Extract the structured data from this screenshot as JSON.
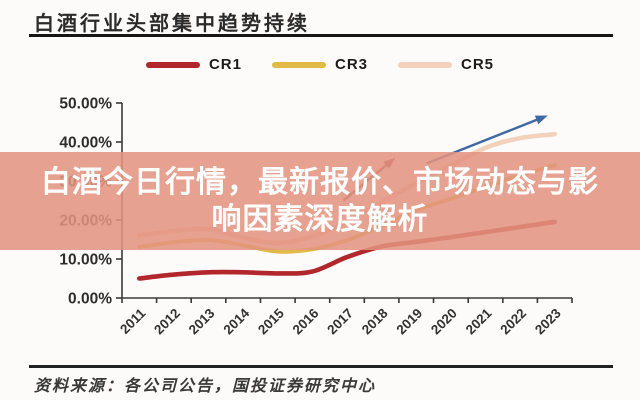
{
  "title": "白酒行业头部集中趋势持续",
  "overlay": {
    "line1": "白酒今日行情，最新报价、市场动态与影",
    "line2": "响因素深度解析",
    "bg_color": "#e29380",
    "text_color": "#ffffff"
  },
  "source": "资料来源：各公司公告，国投证券研究中心",
  "legend": [
    {
      "label": "CR1",
      "color": "#b2272b"
    },
    {
      "label": "CR3",
      "color": "#e2ba47"
    },
    {
      "label": "CR5",
      "color": "#f3d1bd"
    }
  ],
  "chart_data": {
    "type": "line",
    "title": "白酒行业头部集中趋势持续",
    "categories": [
      "2011",
      "2012",
      "2013",
      "2014",
      "2015",
      "2016",
      "2017",
      "2018",
      "2019",
      "2020",
      "2021",
      "2022",
      "2023"
    ],
    "series": [
      {
        "name": "CR1",
        "color": "#b2272b",
        "width": 4.6,
        "values": [
          5.0,
          6.0,
          6.6,
          6.6,
          6.3,
          6.8,
          10.5,
          13.2,
          14.4,
          15.6,
          16.9,
          18.2,
          19.5
        ]
      },
      {
        "name": "CR3",
        "color": "#e2ba47",
        "width": 4.0,
        "values": [
          13.1,
          14.3,
          14.9,
          13.5,
          11.9,
          12.5,
          14.8,
          18.5,
          22.5,
          25.5,
          28.5,
          31.5,
          34.0
        ]
      },
      {
        "name": "CR5",
        "color": "#f3d1bd",
        "width": 4.6,
        "values": [
          16.0,
          17.2,
          17.7,
          15.5,
          14.1,
          15.8,
          19.5,
          24.5,
          29.5,
          34.0,
          38.5,
          41.0,
          42.0
        ]
      }
    ],
    "xlabel": "",
    "ylabel": "",
    "y_ticks": [
      "0.00%",
      "10.00%",
      "20.00%",
      "30.00%",
      "40.00%",
      "50.00%"
    ],
    "ylim": [
      0,
      50
    ],
    "grid": false,
    "legend_position": "top",
    "axis_color": "#3a3a3a",
    "tick_label_color": "#333333",
    "annotations": [
      {
        "type": "arrow",
        "name": "trend-arrow-red",
        "color": "#9e4048",
        "from": [
          2016.9,
          25.0
        ],
        "to": [
          2018.4,
          36.0
        ]
      },
      {
        "type": "arrow",
        "name": "trend-arrow-blue",
        "color": "#4068a2",
        "from": [
          2019.3,
          34.5
        ],
        "to": [
          2022.8,
          46.8
        ]
      }
    ]
  }
}
